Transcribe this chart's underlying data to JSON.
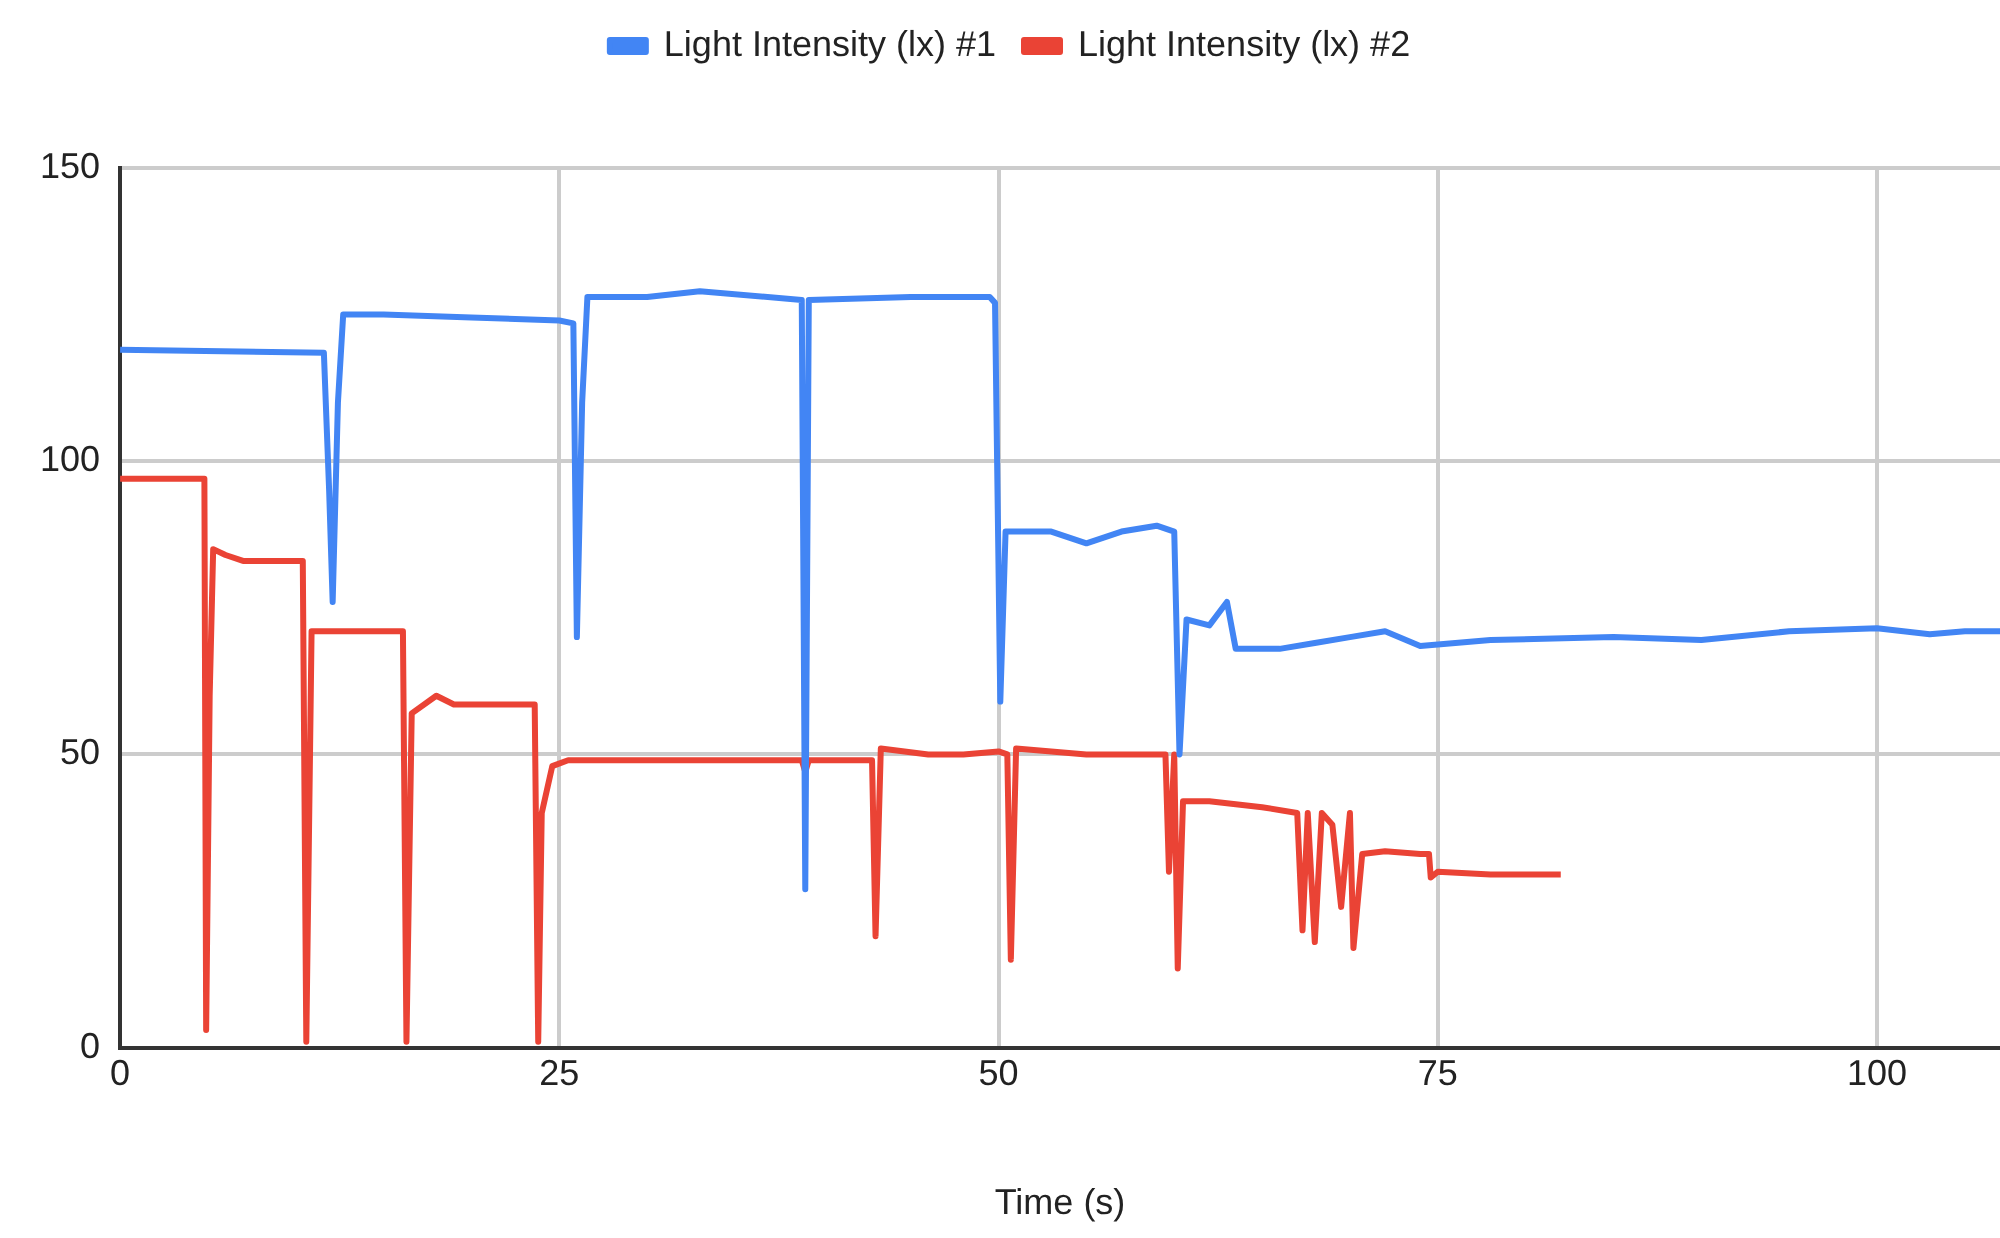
{
  "chart_data": {
    "type": "line",
    "xlabel": "Time (s)",
    "xlim": [
      0,
      107
    ],
    "xticks": [
      0,
      25,
      50,
      75,
      100
    ],
    "ylim": [
      0,
      150
    ],
    "yticks": [
      0,
      50,
      100,
      150
    ],
    "grid": true,
    "legend": "top",
    "marker": "none",
    "line_style": "solid",
    "series": [
      {
        "name": "Light Intensity (lx) #1",
        "color": "#4285f4",
        "x": [
          0,
          11.6,
          11.9,
          12.1,
          12.4,
          12.7,
          15,
          20,
          25,
          25.8,
          26,
          26.3,
          26.6,
          30,
          33,
          38.8,
          39,
          39.2,
          45,
          49.5,
          49.8,
          50.1,
          50.4,
          53,
          55,
          57,
          59,
          60,
          60.3,
          60.7,
          62,
          63,
          63.5,
          66,
          68,
          70,
          72,
          74,
          78,
          85,
          90,
          95,
          100,
          103,
          105,
          107
        ],
        "values": [
          119,
          118.5,
          95,
          76,
          110,
          125,
          125,
          124.5,
          124,
          123.5,
          70,
          110,
          128,
          128,
          129,
          127.5,
          27,
          127.5,
          128,
          128,
          127,
          59,
          88,
          88,
          86,
          88,
          89,
          88,
          50,
          73,
          72,
          76,
          68,
          68,
          69,
          70,
          71,
          68.5,
          69.5,
          70,
          69.5,
          71,
          71.5,
          70.5,
          71,
          71
        ]
      },
      {
        "name": "Light Intensity (lx) #2",
        "color": "#ea4335",
        "x": [
          0,
          4.8,
          4.9,
          5.1,
          5.3,
          6,
          7,
          10.4,
          10.6,
          10.9,
          12,
          16.1,
          16.3,
          16.6,
          18,
          19,
          23.6,
          23.8,
          24,
          24.6,
          25.5,
          38.8,
          39,
          39.2,
          42.8,
          43,
          43.3,
          46,
          48,
          50,
          50.5,
          50.7,
          51,
          55,
          58,
          59.5,
          59.7,
          60,
          60.2,
          60.5,
          62,
          65,
          67,
          67.3,
          67.6,
          68,
          68.4,
          69,
          69.5,
          70,
          70.2,
          70.7,
          72,
          74,
          74.5,
          74.6,
          75,
          78,
          82
        ],
        "values": [
          97,
          97,
          3,
          60,
          85,
          84,
          83,
          83,
          1,
          71,
          71,
          71,
          1,
          57,
          60,
          58.5,
          58.5,
          1,
          40,
          48,
          49,
          49,
          47,
          49,
          49,
          19,
          51,
          50,
          50,
          50.5,
          50,
          15,
          51,
          50,
          50,
          50,
          30,
          50,
          13.5,
          42,
          42,
          41,
          40,
          20,
          40,
          18,
          40,
          38,
          24,
          40,
          17,
          33,
          33.5,
          33,
          33,
          29,
          30,
          29.5,
          29.5
        ]
      }
    ]
  }
}
